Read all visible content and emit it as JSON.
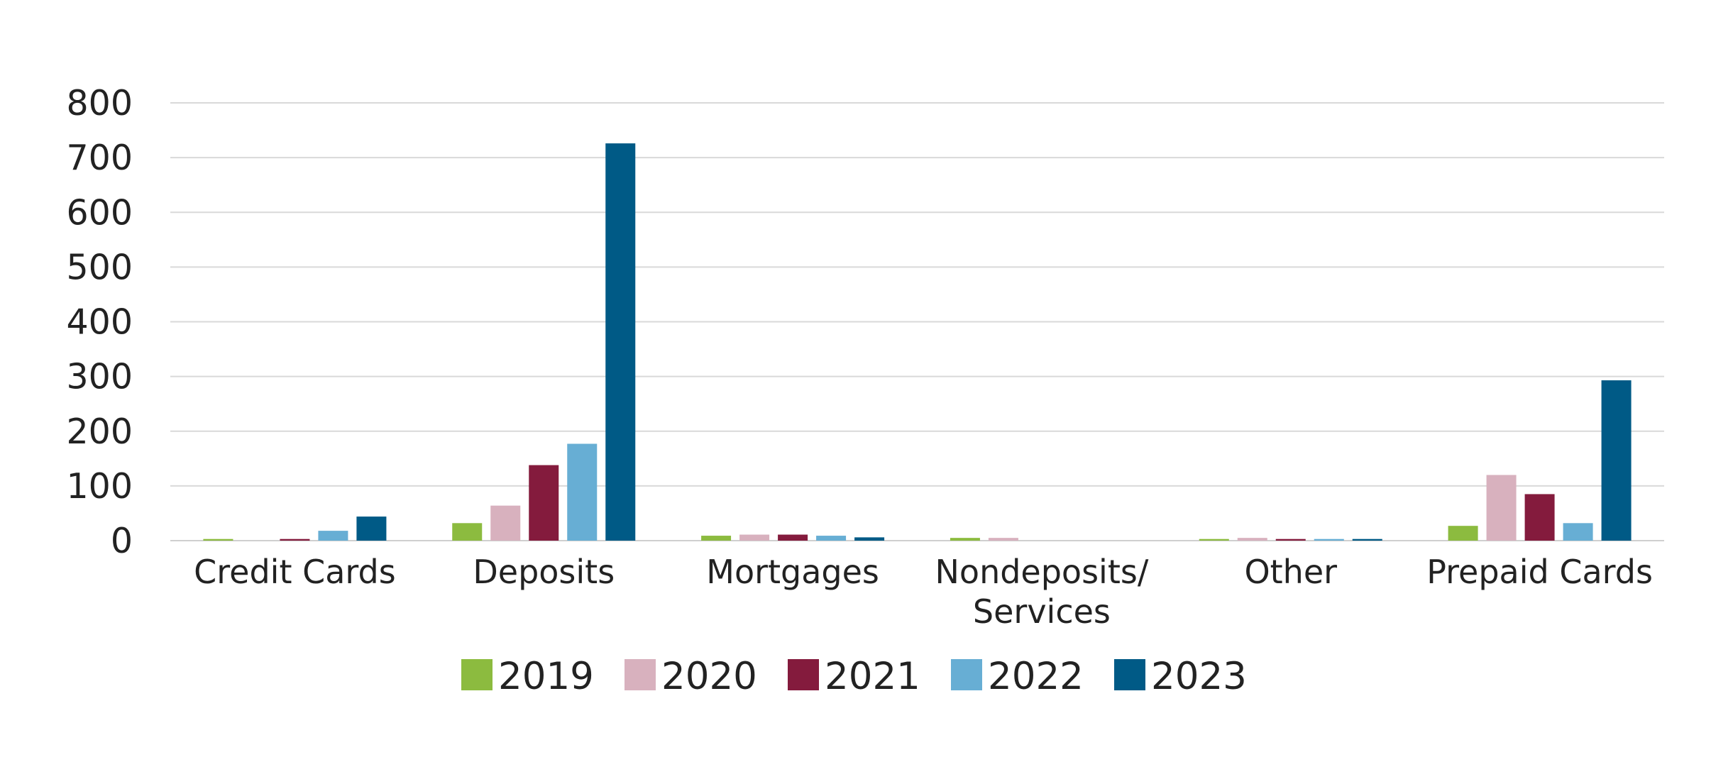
{
  "chart_data": {
    "type": "bar",
    "title": "",
    "xlabel": "",
    "ylabel": "",
    "ylim": [
      0,
      800
    ],
    "yticks": [
      0,
      100,
      200,
      300,
      400,
      500,
      600,
      700,
      800
    ],
    "grid": true,
    "legend_position": "bottom",
    "categories": [
      [
        "Credit Cards"
      ],
      [
        "Deposits"
      ],
      [
        "Mortgages"
      ],
      [
        "Nondeposits/",
        "Services"
      ],
      [
        "Other"
      ],
      [
        "Prepaid Cards"
      ]
    ],
    "series": [
      {
        "name": "2019",
        "color": "#8cbb3f",
        "values": [
          3,
          32,
          9,
          5,
          3,
          27
        ]
      },
      {
        "name": "2020",
        "color": "#d8b1be",
        "values": [
          0,
          64,
          11,
          5,
          5,
          120
        ]
      },
      {
        "name": "2021",
        "color": "#841b3d",
        "values": [
          3,
          138,
          11,
          0,
          3,
          85
        ]
      },
      {
        "name": "2022",
        "color": "#67aed4",
        "values": [
          18,
          177,
          9,
          0,
          3,
          32
        ]
      },
      {
        "name": "2023",
        "color": "#005a86",
        "values": [
          44,
          726,
          6,
          0,
          3,
          293
        ]
      }
    ]
  }
}
